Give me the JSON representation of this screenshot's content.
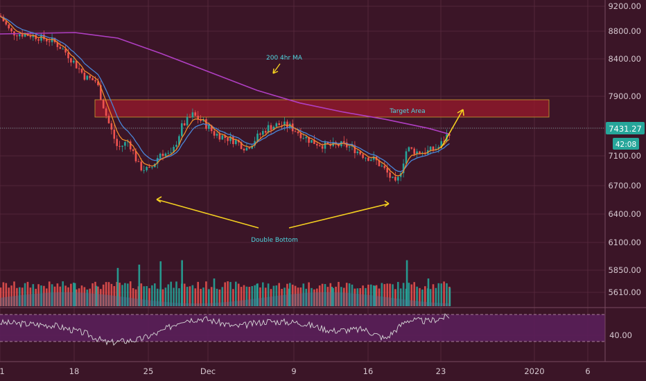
{
  "colors": {
    "background": "#3b1527",
    "grid": "#5a2b40",
    "up": "#26a69a",
    "down": "#ef5350",
    "ma200": "#b03fc3",
    "ema_fast": "#f08a2a",
    "ema_slow": "#4a86d8",
    "annotation_text": "#4fd6e0",
    "arrow": "#f5d020",
    "target_zone": "#9a1a2c",
    "rsi_band": "#5a1f5a",
    "rsi_line": "#d8d8d8",
    "price_label_bg": "#26a69a"
  },
  "chart_data": [
    {
      "type": "candlestick",
      "title": "",
      "x_ticks": [
        "1",
        "18",
        "25",
        "Dec",
        "9",
        "16",
        "23",
        "2020",
        "6"
      ],
      "y_ticks": [
        "9200.00",
        "8800.00",
        "8400.00",
        "7900.00",
        "7431.27",
        "7100.00",
        "6700.00",
        "6400.00",
        "6100.00",
        "5850.00",
        "5610.00"
      ],
      "current_price": "7431.27",
      "countdown": "42:08",
      "price_path": [
        [
          "Nov 11",
          9050
        ],
        [
          "Nov 12",
          8780
        ],
        [
          "Nov 14",
          8740
        ],
        [
          "Nov 16",
          8650
        ],
        [
          "Nov 17",
          8520
        ],
        [
          "Nov 19",
          8150
        ],
        [
          "Nov 20",
          8100
        ],
        [
          "Nov 21",
          7600
        ],
        [
          "Nov 22",
          7200
        ],
        [
          "Nov 23",
          7300
        ],
        [
          "Nov 24",
          6950
        ],
        [
          "Nov 25",
          6900
        ],
        [
          "Nov 26",
          7150
        ],
        [
          "Nov 27",
          7100
        ],
        [
          "Nov 28",
          7500
        ],
        [
          "Nov 29",
          7650
        ],
        [
          "Nov 30",
          7550
        ],
        [
          "Dec 1",
          7400
        ],
        [
          "Dec 2",
          7350
        ],
        [
          "Dec 3",
          7300
        ],
        [
          "Dec 4",
          7200
        ],
        [
          "Dec 5",
          7350
        ],
        [
          "Dec 6",
          7480
        ],
        [
          "Dec 7",
          7520
        ],
        [
          "Dec 8",
          7500
        ],
        [
          "Dec 9",
          7400
        ],
        [
          "Dec 10",
          7300
        ],
        [
          "Dec 11",
          7250
        ],
        [
          "Dec 12",
          7230
        ],
        [
          "Dec 13",
          7250
        ],
        [
          "Dec 14",
          7200
        ],
        [
          "Dec 15",
          7100
        ],
        [
          "Dec 16",
          7050
        ],
        [
          "Dec 17",
          6900
        ],
        [
          "Dec 18",
          6700
        ],
        [
          "Dec 19",
          7200
        ],
        [
          "Dec 20",
          7150
        ],
        [
          "Dec 21",
          7160
        ],
        [
          "Dec 22",
          7220
        ],
        [
          "Dec 23",
          7431
        ]
      ],
      "ma200_path": [
        [
          "Nov 11",
          8760
        ],
        [
          "Nov 18",
          8780
        ],
        [
          "Nov 22",
          8700
        ],
        [
          "Nov 26",
          8480
        ],
        [
          "Dec 1",
          8200
        ],
        [
          "Dec 5",
          7980
        ],
        [
          "Dec 9",
          7810
        ],
        [
          "Dec 13",
          7690
        ],
        [
          "Dec 17",
          7590
        ],
        [
          "Dec 21",
          7470
        ],
        [
          "Dec 23",
          7390
        ]
      ],
      "volume": [
        [
          "Nov 18",
          5710
        ],
        [
          "Nov 20",
          5680
        ],
        [
          "Nov 22",
          5870
        ],
        [
          "Nov 24",
          5900
        ],
        [
          "Nov 26",
          5930
        ],
        [
          "Nov 28",
          5940
        ],
        [
          "Dec 1",
          5760
        ],
        [
          "Dec 5",
          5700
        ],
        [
          "Dec 8",
          5650
        ],
        [
          "Dec 12",
          5670
        ],
        [
          "Dec 16",
          5680
        ],
        [
          "Dec 19",
          5940
        ],
        [
          "Dec 21",
          5760
        ],
        [
          "Dec 23",
          5660
        ]
      ],
      "target_area": {
        "label": "Target Area",
        "from": 7580,
        "to": 7780
      },
      "annotations": {
        "ma_label": "200 4hr MA",
        "pattern_label": "Double Bottom"
      }
    },
    {
      "type": "line",
      "title": "",
      "y_ticks": [
        "40.00"
      ],
      "values": [
        [
          "Nov 11",
          58
        ],
        [
          "Nov 16",
          54
        ],
        [
          "Nov 19",
          42
        ],
        [
          "Nov 21",
          28
        ],
        [
          "Nov 24",
          33
        ],
        [
          "Nov 26",
          44
        ],
        [
          "Nov 28",
          62
        ],
        [
          "Nov 30",
          64
        ],
        [
          "Dec 3",
          52
        ],
        [
          "Dec 6",
          60
        ],
        [
          "Dec 9",
          58
        ],
        [
          "Dec 12",
          46
        ],
        [
          "Dec 15",
          48
        ],
        [
          "Dec 17",
          34
        ],
        [
          "Dec 19",
          62
        ],
        [
          "Dec 21",
          60
        ],
        [
          "Dec 23",
          68
        ]
      ]
    }
  ]
}
